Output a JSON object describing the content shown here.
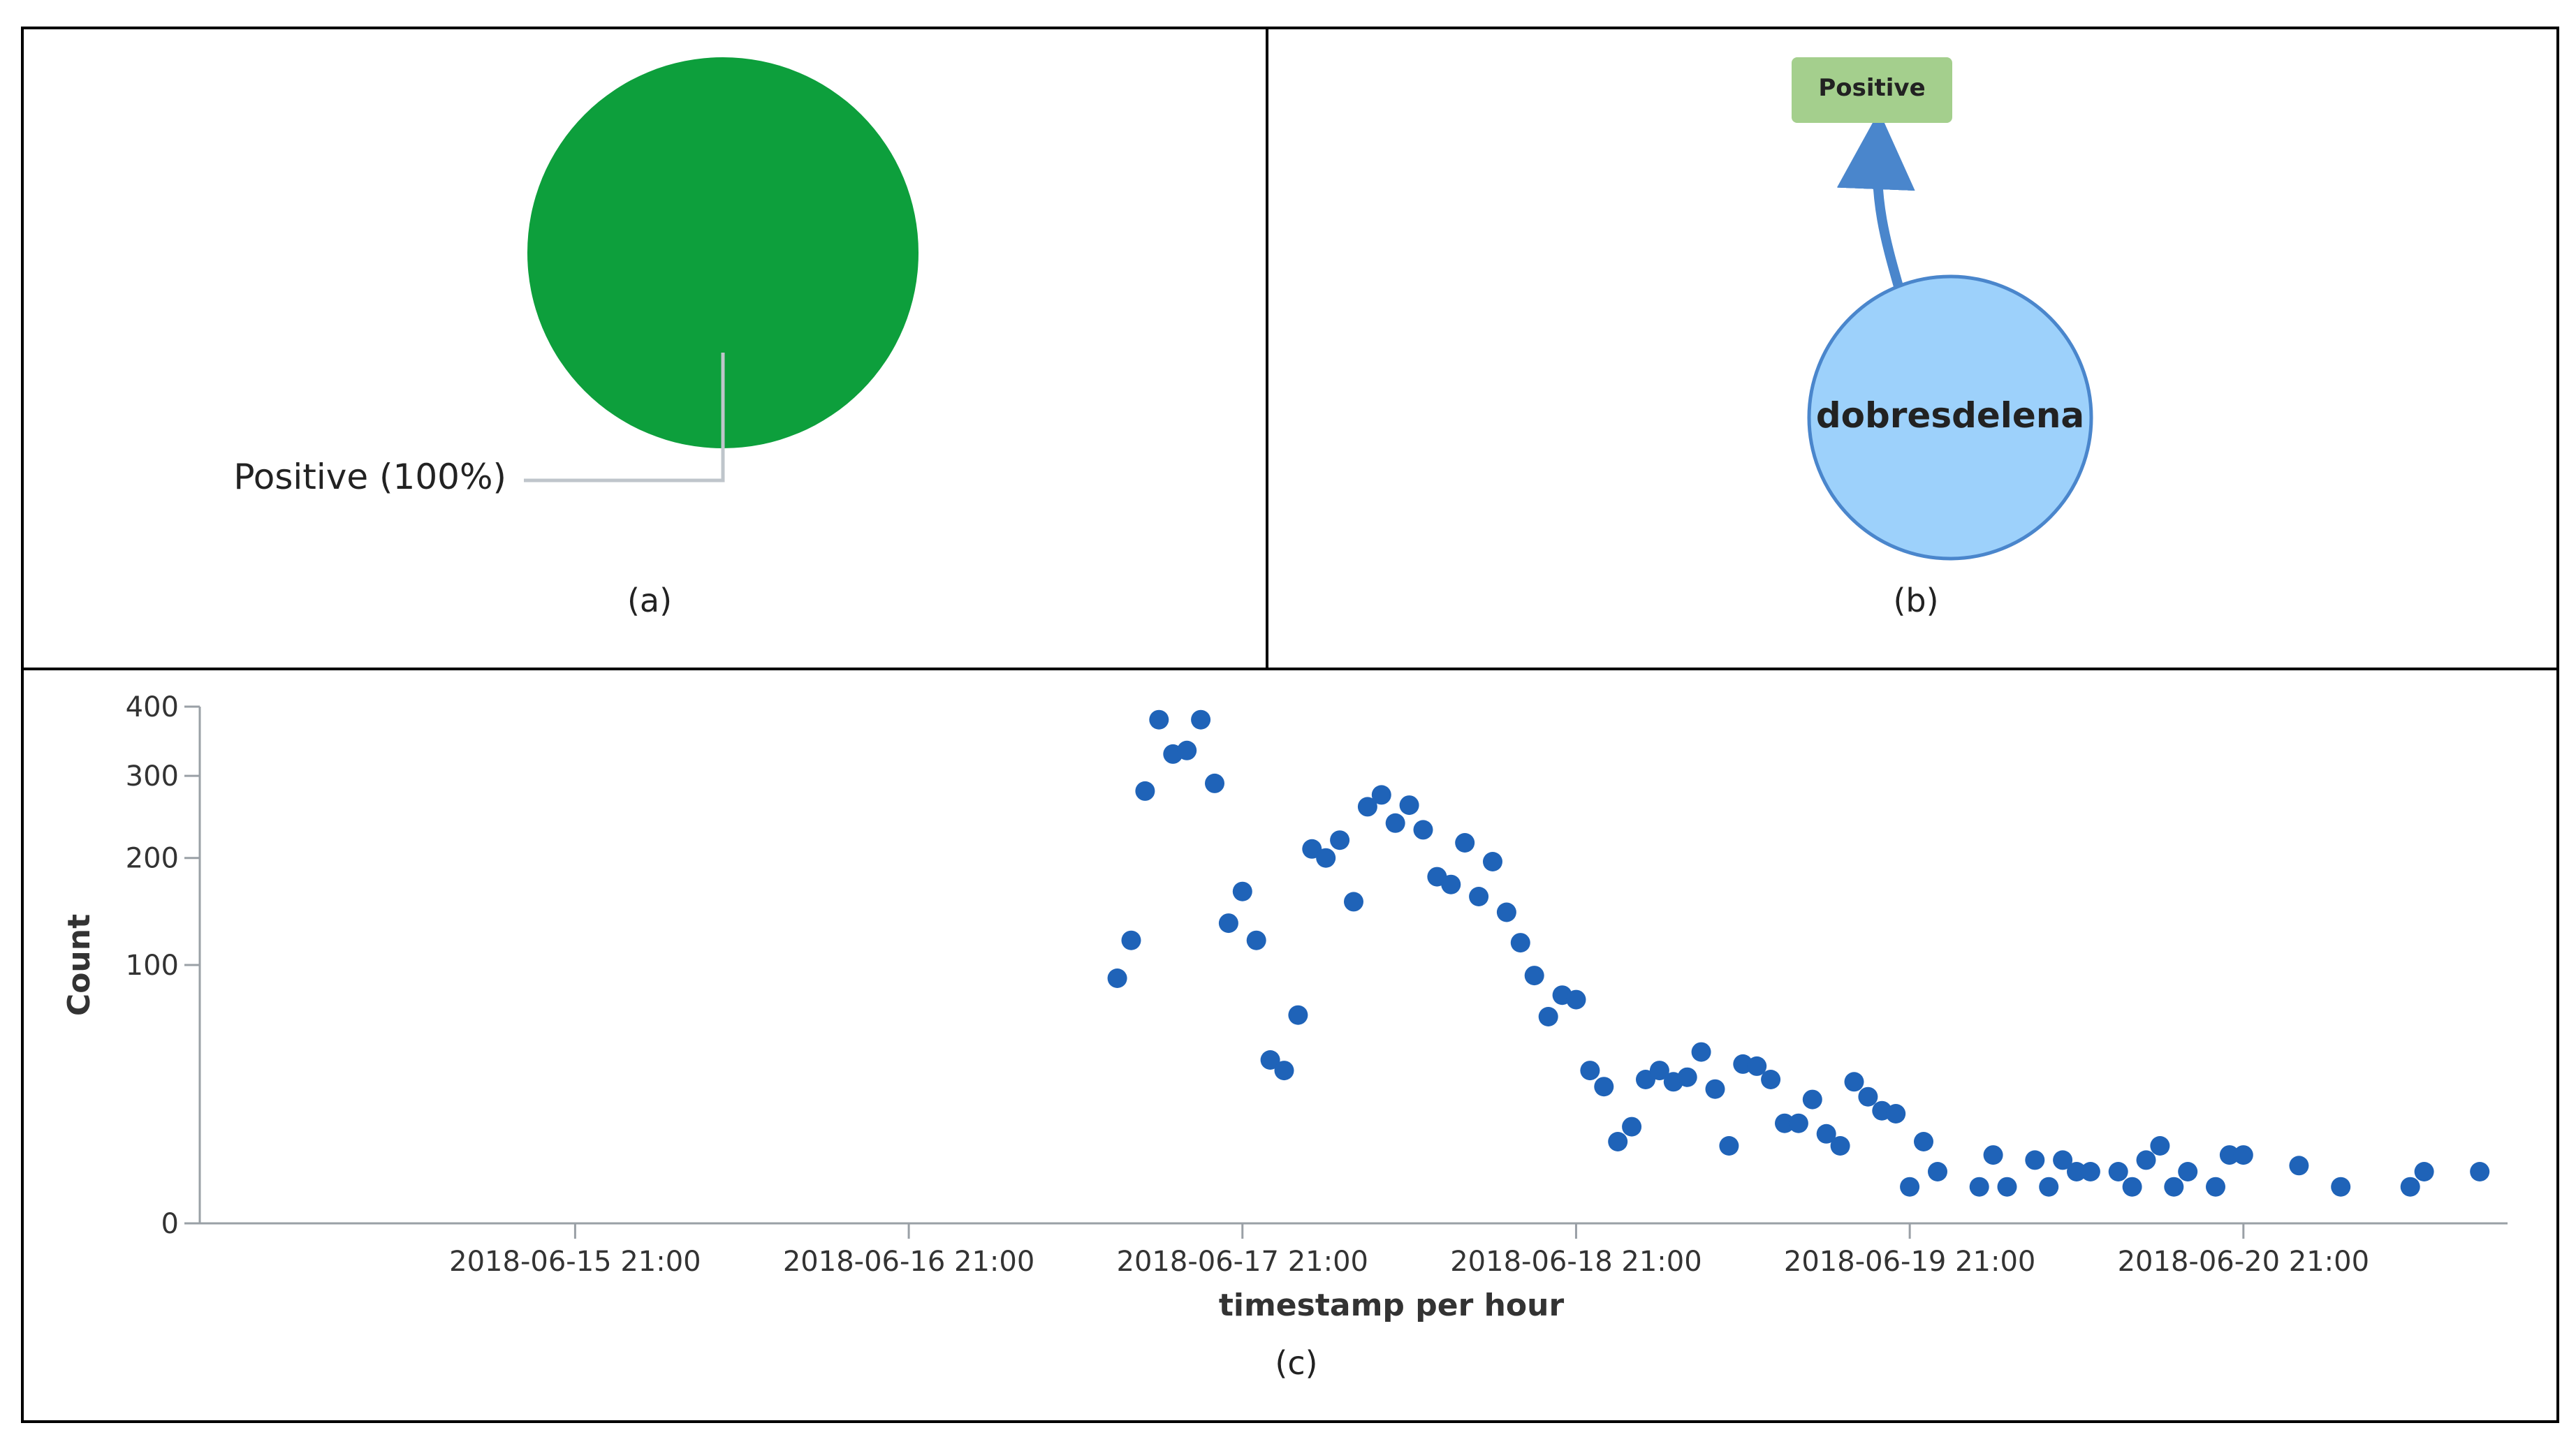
{
  "colors": {
    "pie_fill": "#0d9f3c",
    "leader_line": "#bfc5cb",
    "node_fill": "#9dd1fb",
    "node_stroke": "#4a86cc",
    "arrow": "#4a86cc",
    "tag_fill": "#a4cf8d",
    "point_fill": "#1f63b8",
    "axis": "#9aa0a6"
  },
  "panel_a": {
    "caption": "(a)",
    "label": "Positive (100%)"
  },
  "panel_b": {
    "caption": "(b)",
    "target_label": "Positive",
    "source_label": "dobresdelena"
  },
  "panel_c": {
    "caption": "(c)"
  },
  "chart_data": [
    {
      "type": "pie",
      "slices": [
        {
          "label": "Positive",
          "value": 100,
          "display": "Positive (100%)"
        }
      ]
    },
    {
      "type": "network",
      "nodes": [
        {
          "id": "dobresdelena",
          "kind": "user"
        },
        {
          "id": "Positive",
          "kind": "sentiment"
        }
      ],
      "edges": [
        {
          "from": "dobresdelena",
          "to": "Positive"
        }
      ]
    },
    {
      "type": "scatter",
      "xlabel": "timestamp per hour",
      "ylabel": "Count",
      "yscale": "sqrt",
      "ylim": [
        0,
        400
      ],
      "yticks": [
        0,
        100,
        200,
        300,
        400
      ],
      "xlim": [
        "2018-06-14 18:00",
        "2018-06-21 16:00"
      ],
      "xticks": [
        "2018-06-15 21:00",
        "2018-06-16 21:00",
        "2018-06-17 21:00",
        "2018-06-18 21:00",
        "2018-06-19 21:00",
        "2018-06-20 21:00"
      ],
      "xtick_labels": [
        "2018-06-15 21:00",
        "2018-06-16 21:00",
        "2018-06-17 21:00",
        "2018-06-18 21:00",
        "2018-06-19 21:00",
        "2018-06-20 21:00"
      ],
      "points": [
        [
          "2018-06-17 12:00",
          90
        ],
        [
          "2018-06-17 13:00",
          120
        ],
        [
          "2018-06-17 14:00",
          280
        ],
        [
          "2018-06-17 15:00",
          380
        ],
        [
          "2018-06-17 16:00",
          330
        ],
        [
          "2018-06-17 17:00",
          335
        ],
        [
          "2018-06-17 18:00",
          380
        ],
        [
          "2018-06-17 19:00",
          290
        ],
        [
          "2018-06-17 20:00",
          135
        ],
        [
          "2018-06-17 21:00",
          165
        ],
        [
          "2018-06-17 22:00",
          120
        ],
        [
          "2018-06-17 23:00",
          40
        ],
        [
          "2018-06-18 00:00",
          35
        ],
        [
          "2018-06-18 01:00",
          65
        ],
        [
          "2018-06-18 02:00",
          210
        ],
        [
          "2018-06-18 03:00",
          200
        ],
        [
          "2018-06-18 04:00",
          220
        ],
        [
          "2018-06-18 05:00",
          155
        ],
        [
          "2018-06-18 06:00",
          260
        ],
        [
          "2018-06-18 07:00",
          275
        ],
        [
          "2018-06-18 08:00",
          240
        ],
        [
          "2018-06-18 09:00",
          262
        ],
        [
          "2018-06-18 10:00",
          232
        ],
        [
          "2018-06-18 11:00",
          180
        ],
        [
          "2018-06-18 12:00",
          172
        ],
        [
          "2018-06-18 13:00",
          217
        ],
        [
          "2018-06-18 14:00",
          160
        ],
        [
          "2018-06-18 15:00",
          196
        ],
        [
          "2018-06-18 16:00",
          145
        ],
        [
          "2018-06-18 17:00",
          118
        ],
        [
          "2018-06-18 18:00",
          92
        ],
        [
          "2018-06-18 19:00",
          64
        ],
        [
          "2018-06-18 20:00",
          78
        ],
        [
          "2018-06-18 21:00",
          75
        ],
        [
          "2018-06-18 22:00",
          35
        ],
        [
          "2018-06-18 23:00",
          28
        ],
        [
          "2018-06-19 00:00",
          10
        ],
        [
          "2018-06-19 01:00",
          14
        ],
        [
          "2018-06-19 02:00",
          31
        ],
        [
          "2018-06-19 03:00",
          35
        ],
        [
          "2018-06-19 04:00",
          30
        ],
        [
          "2018-06-19 05:00",
          32
        ],
        [
          "2018-06-19 06:00",
          44
        ],
        [
          "2018-06-19 07:00",
          27
        ],
        [
          "2018-06-19 08:00",
          9
        ],
        [
          "2018-06-19 09:00",
          38
        ],
        [
          "2018-06-19 10:00",
          37
        ],
        [
          "2018-06-19 11:00",
          31
        ],
        [
          "2018-06-19 12:00",
          15
        ],
        [
          "2018-06-19 13:00",
          15
        ],
        [
          "2018-06-19 14:00",
          23
        ],
        [
          "2018-06-19 15:00",
          12
        ],
        [
          "2018-06-19 16:00",
          9
        ],
        [
          "2018-06-19 17:00",
          30
        ],
        [
          "2018-06-19 18:00",
          24
        ],
        [
          "2018-06-19 19:00",
          19
        ],
        [
          "2018-06-19 20:00",
          18
        ],
        [
          "2018-06-19 21:00",
          2
        ],
        [
          "2018-06-19 22:00",
          10
        ],
        [
          "2018-06-19 23:00",
          4
        ],
        [
          "2018-06-20 02:00",
          2
        ],
        [
          "2018-06-20 03:00",
          7
        ],
        [
          "2018-06-20 04:00",
          2
        ],
        [
          "2018-06-20 06:00",
          6
        ],
        [
          "2018-06-20 07:00",
          2
        ],
        [
          "2018-06-20 08:00",
          6
        ],
        [
          "2018-06-20 09:00",
          4
        ],
        [
          "2018-06-20 10:00",
          4
        ],
        [
          "2018-06-20 12:00",
          4
        ],
        [
          "2018-06-20 13:00",
          2
        ],
        [
          "2018-06-20 14:00",
          6
        ],
        [
          "2018-06-20 15:00",
          9
        ],
        [
          "2018-06-20 16:00",
          2
        ],
        [
          "2018-06-20 17:00",
          4
        ],
        [
          "2018-06-20 19:00",
          2
        ],
        [
          "2018-06-20 20:00",
          7
        ],
        [
          "2018-06-20 21:00",
          7
        ],
        [
          "2018-06-21 01:00",
          5
        ],
        [
          "2018-06-21 04:00",
          2
        ],
        [
          "2018-06-21 09:00",
          2
        ],
        [
          "2018-06-21 10:00",
          4
        ],
        [
          "2018-06-21 14:00",
          4
        ]
      ]
    }
  ]
}
